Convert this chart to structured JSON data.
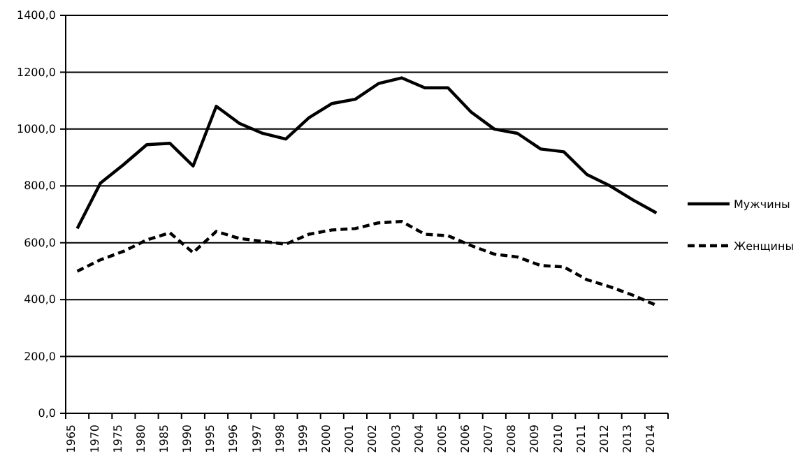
{
  "chart_data": {
    "type": "line",
    "categories": [
      "1965",
      "1970",
      "1975",
      "1980",
      "1985",
      "1990",
      "1995",
      "1996",
      "1997",
      "1998",
      "1999",
      "2000",
      "2001",
      "2002",
      "2003",
      "2004",
      "2005",
      "2006",
      "2007",
      "2008",
      "2009",
      "2010",
      "2011",
      "2012",
      "2013",
      "2014"
    ],
    "series": [
      {
        "name": "Мужчины",
        "color": "#000000",
        "line_style": "solid",
        "values": [
          650,
          810,
          875,
          945,
          950,
          870,
          1080,
          1020,
          985,
          965,
          1040,
          1090,
          1105,
          1160,
          1180,
          1145,
          1145,
          1060,
          1000,
          985,
          930,
          920,
          840,
          800,
          750,
          705
        ]
      },
      {
        "name": "Женщины",
        "color": "#000000",
        "line_style": "dashed",
        "values": [
          500,
          540,
          570,
          610,
          635,
          565,
          640,
          615,
          605,
          595,
          630,
          645,
          650,
          670,
          675,
          630,
          625,
          590,
          560,
          550,
          520,
          515,
          470,
          445,
          415,
          380
        ]
      }
    ],
    "ylim": [
      0,
      1400
    ],
    "yticks": [
      {
        "value": 0,
        "label": "0,0"
      },
      {
        "value": 200,
        "label": "200,0"
      },
      {
        "value": 400,
        "label": "400,0"
      },
      {
        "value": 600,
        "label": "600,0"
      },
      {
        "value": 800,
        "label": "800,0"
      },
      {
        "value": 1000,
        "label": "1000,0"
      },
      {
        "value": 1200,
        "label": "1200,0"
      },
      {
        "value": 1400,
        "label": "1400,0"
      }
    ],
    "grid": "y",
    "legend": "right",
    "marker": "none"
  }
}
